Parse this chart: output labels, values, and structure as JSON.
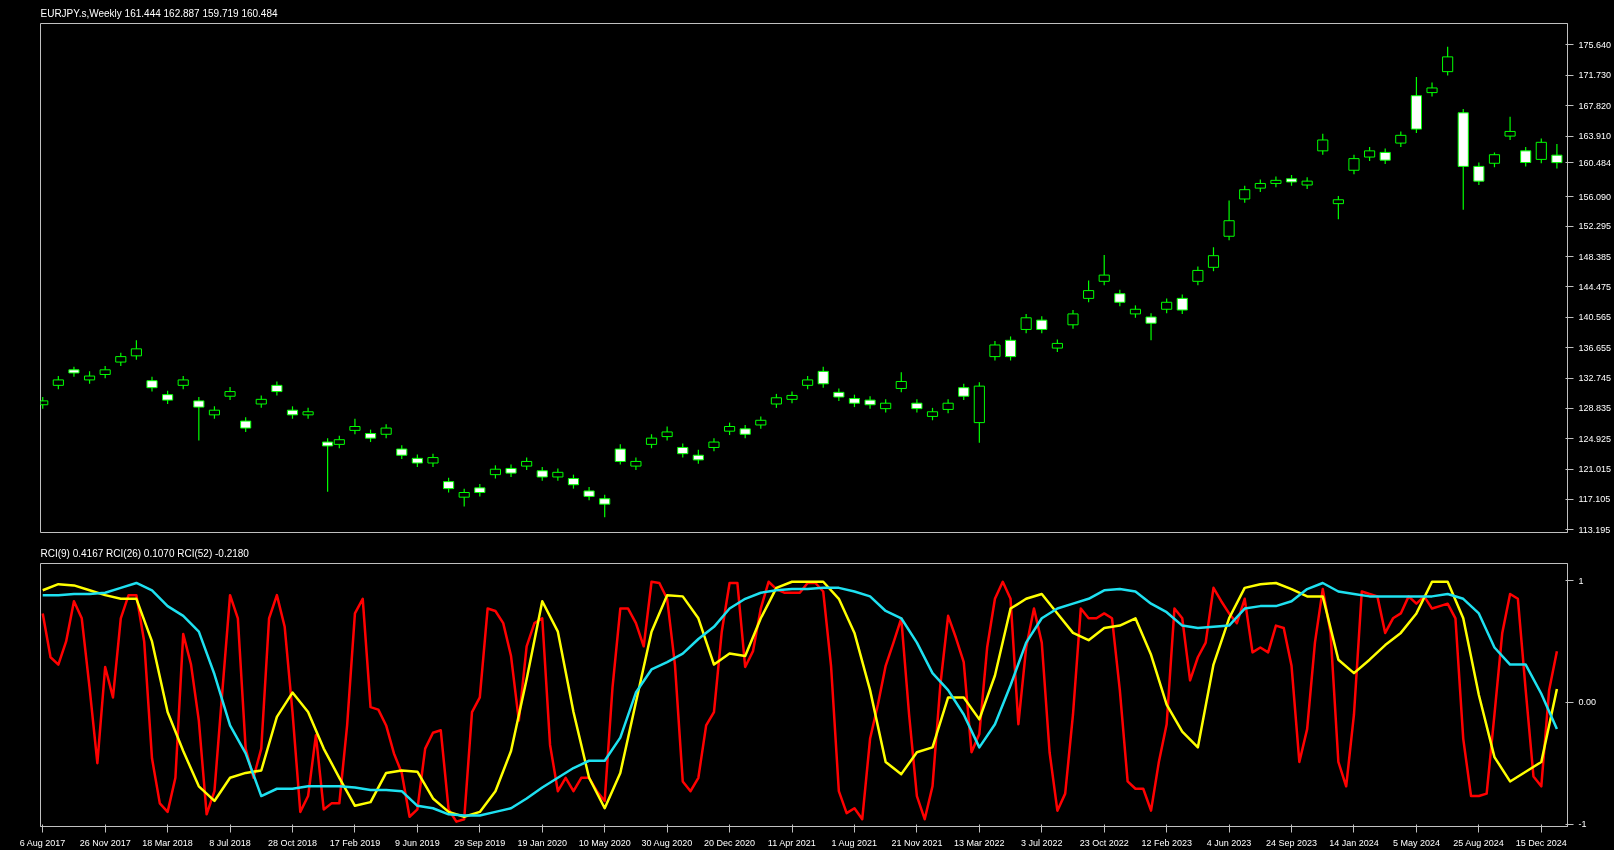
{
  "chart_data": [
    {
      "type": "candlestick",
      "title": "EURJPY.s,Weekly  161.444 162.887 159.719 160.484",
      "color": "#00ff00",
      "tick_labels": "y",
      "xlim": [
        "2017-08-02",
        "2025-01-31"
      ],
      "ylim": [
        112.85,
        178.4
      ],
      "yticks": [
        {
          "value": 175.64,
          "label": "175.640"
        },
        {
          "value": 171.73,
          "label": "171.730"
        },
        {
          "value": 167.82,
          "label": "167.820"
        },
        {
          "value": 163.91,
          "label": "163.910"
        },
        {
          "value": 160.484,
          "label": "160.484"
        },
        {
          "value": 156.09,
          "label": "156.090"
        },
        {
          "value": 152.295,
          "label": "152.295"
        },
        {
          "value": 148.385,
          "label": "148.385"
        },
        {
          "value": 144.475,
          "label": "144.475"
        },
        {
          "value": 140.565,
          "label": "140.565"
        },
        {
          "value": 136.655,
          "label": "136.655"
        },
        {
          "value": 132.745,
          "label": "132.745"
        },
        {
          "value": 128.835,
          "label": "128.835"
        },
        {
          "value": 124.925,
          "label": "124.925"
        },
        {
          "value": 121.015,
          "label": "121.015"
        },
        {
          "value": 117.105,
          "label": "117.105"
        },
        {
          "value": 113.195,
          "label": "113.195"
        }
      ],
      "x": [
        "2017-08-06",
        "2017-09-03",
        "2017-10-01",
        "2017-10-29",
        "2017-11-26",
        "2017-12-24",
        "2018-01-21",
        "2018-02-18",
        "2018-03-18",
        "2018-04-15",
        "2018-05-13",
        "2018-06-10",
        "2018-07-08",
        "2018-08-05",
        "2018-09-02",
        "2018-09-30",
        "2018-10-28",
        "2018-11-25",
        "2018-12-30",
        "2019-01-20",
        "2019-02-17",
        "2019-03-17",
        "2019-04-14",
        "2019-05-12",
        "2019-06-09",
        "2019-07-07",
        "2019-08-04",
        "2019-09-01",
        "2019-09-29",
        "2019-10-27",
        "2019-11-24",
        "2019-12-22",
        "2020-01-19",
        "2020-02-16",
        "2020-03-15",
        "2020-04-12",
        "2020-05-10",
        "2020-06-07",
        "2020-07-05",
        "2020-08-02",
        "2020-08-30",
        "2020-09-27",
        "2020-10-25",
        "2020-11-22",
        "2020-12-20",
        "2021-01-17",
        "2021-02-14",
        "2021-03-14",
        "2021-04-11",
        "2021-05-09",
        "2021-06-06",
        "2021-07-04",
        "2021-08-01",
        "2021-08-29",
        "2021-09-26",
        "2021-10-24",
        "2021-11-21",
        "2021-12-19",
        "2022-01-16",
        "2022-02-13",
        "2022-03-13",
        "2022-04-10",
        "2022-05-08",
        "2022-06-05",
        "2022-07-03",
        "2022-07-31",
        "2022-08-28",
        "2022-09-25",
        "2022-10-23",
        "2022-11-20",
        "2022-12-18",
        "2023-01-15",
        "2023-02-12",
        "2023-03-12",
        "2023-04-09",
        "2023-05-07",
        "2023-06-04",
        "2023-07-02",
        "2023-07-30",
        "2023-08-27",
        "2023-09-24",
        "2023-10-22",
        "2023-11-19",
        "2023-12-17",
        "2024-01-14",
        "2024-02-11",
        "2024-03-10",
        "2024-04-07",
        "2024-05-05",
        "2024-06-02",
        "2024-06-30",
        "2024-07-28",
        "2024-08-25",
        "2024-09-22",
        "2024-10-20",
        "2024-11-17",
        "2024-12-15",
        "2025-01-12"
      ],
      "ohlc": [
        [
          129.3,
          130.3,
          128.8,
          129.8
        ],
        [
          131.8,
          133.0,
          131.3,
          132.5
        ],
        [
          133.8,
          134.2,
          132.9,
          133.4
        ],
        [
          132.5,
          133.6,
          132.0,
          133.0
        ],
        [
          133.2,
          134.3,
          132.7,
          133.8
        ],
        [
          134.8,
          136.0,
          134.3,
          135.5
        ],
        [
          135.6,
          137.6,
          135.1,
          136.5
        ],
        [
          132.4,
          132.9,
          131.0,
          131.5
        ],
        [
          130.6,
          131.1,
          129.4,
          129.9
        ],
        [
          131.8,
          133.0,
          131.3,
          132.5
        ],
        [
          129.8,
          130.3,
          124.7,
          129.0
        ],
        [
          128.0,
          129.1,
          127.5,
          128.6
        ],
        [
          130.4,
          131.6,
          129.9,
          131.0
        ],
        [
          127.2,
          127.7,
          125.8,
          126.3
        ],
        [
          129.4,
          130.5,
          128.9,
          130.0
        ],
        [
          131.8,
          132.3,
          130.5,
          131.0
        ],
        [
          128.6,
          129.1,
          127.5,
          128.0
        ],
        [
          128.0,
          128.9,
          127.5,
          128.4
        ],
        [
          124.5,
          125.0,
          118.1,
          124.0
        ],
        [
          124.2,
          125.3,
          123.7,
          124.8
        ],
        [
          126.0,
          127.5,
          125.5,
          126.5
        ],
        [
          125.6,
          126.1,
          124.5,
          125.0
        ],
        [
          125.5,
          126.8,
          125.0,
          126.3
        ],
        [
          123.6,
          124.1,
          122.3,
          122.8
        ],
        [
          122.4,
          122.9,
          121.3,
          121.8
        ],
        [
          121.8,
          123.0,
          121.3,
          122.5
        ],
        [
          119.4,
          119.9,
          118.0,
          118.5
        ],
        [
          117.4,
          118.5,
          116.2,
          118.0
        ],
        [
          118.6,
          119.1,
          117.5,
          118.0
        ],
        [
          120.3,
          121.5,
          119.8,
          121.0
        ],
        [
          121.1,
          121.6,
          120.0,
          120.5
        ],
        [
          121.4,
          122.5,
          120.9,
          122.0
        ],
        [
          120.8,
          121.3,
          119.5,
          120.0
        ],
        [
          120.0,
          121.1,
          119.5,
          120.6
        ],
        [
          119.8,
          120.3,
          118.5,
          119.0
        ],
        [
          118.2,
          118.7,
          117.0,
          117.5
        ],
        [
          117.2,
          117.7,
          114.8,
          116.5
        ],
        [
          123.6,
          124.2,
          121.6,
          122.0
        ],
        [
          121.4,
          122.5,
          120.9,
          122.0
        ],
        [
          124.2,
          125.5,
          123.7,
          125.0
        ],
        [
          125.2,
          126.5,
          124.7,
          125.8
        ],
        [
          123.8,
          124.3,
          122.5,
          123.0
        ],
        [
          122.8,
          123.5,
          121.7,
          122.2
        ],
        [
          123.8,
          125.0,
          123.3,
          124.5
        ],
        [
          125.9,
          127.0,
          125.4,
          126.5
        ],
        [
          126.2,
          126.7,
          125.0,
          125.5
        ],
        [
          126.7,
          127.8,
          126.2,
          127.3
        ],
        [
          129.4,
          130.7,
          128.9,
          130.2
        ],
        [
          130.0,
          131.0,
          129.5,
          130.5
        ],
        [
          131.8,
          133.0,
          131.3,
          132.5
        ],
        [
          133.6,
          134.2,
          131.5,
          132.0
        ],
        [
          130.9,
          131.4,
          129.8,
          130.3
        ],
        [
          130.1,
          130.6,
          129.0,
          129.5
        ],
        [
          129.9,
          130.4,
          128.8,
          129.3
        ],
        [
          128.8,
          130.0,
          128.3,
          129.5
        ],
        [
          131.4,
          133.5,
          130.9,
          132.3
        ],
        [
          129.5,
          130.0,
          128.3,
          128.8
        ],
        [
          127.8,
          128.9,
          127.3,
          128.4
        ],
        [
          128.7,
          130.0,
          128.2,
          129.5
        ],
        [
          131.5,
          132.0,
          129.9,
          130.4
        ],
        [
          127.0,
          132.2,
          124.4,
          131.7
        ],
        [
          135.5,
          137.5,
          135.0,
          137.0
        ],
        [
          137.6,
          138.1,
          135.0,
          135.5
        ],
        [
          139.0,
          141.0,
          138.5,
          140.5
        ],
        [
          140.2,
          140.7,
          138.5,
          139.0
        ],
        [
          136.6,
          137.7,
          136.1,
          137.2
        ],
        [
          139.6,
          141.5,
          139.1,
          141.0
        ],
        [
          143.0,
          145.3,
          142.5,
          144.0
        ],
        [
          145.2,
          148.6,
          144.7,
          146.0
        ],
        [
          143.6,
          144.1,
          142.0,
          142.5
        ],
        [
          141.0,
          142.1,
          140.5,
          141.6
        ],
        [
          140.6,
          141.1,
          137.6,
          139.8
        ],
        [
          141.6,
          143.0,
          141.1,
          142.5
        ],
        [
          143.0,
          143.5,
          141.0,
          141.5
        ],
        [
          145.2,
          147.1,
          144.7,
          146.6
        ],
        [
          147.0,
          149.6,
          146.5,
          148.5
        ],
        [
          151.0,
          155.6,
          150.5,
          153.0
        ],
        [
          155.8,
          157.5,
          155.3,
          157.0
        ],
        [
          157.2,
          158.3,
          156.7,
          157.8
        ],
        [
          157.8,
          158.7,
          157.3,
          158.2
        ],
        [
          158.4,
          158.9,
          157.5,
          158.0
        ],
        [
          157.6,
          158.6,
          157.1,
          158.1
        ],
        [
          162.0,
          164.2,
          161.5,
          163.4
        ],
        [
          155.2,
          156.2,
          153.2,
          155.7
        ],
        [
          159.5,
          161.5,
          159.0,
          161.0
        ],
        [
          161.2,
          162.5,
          160.7,
          162.0
        ],
        [
          161.8,
          162.3,
          160.3,
          160.8
        ],
        [
          163.0,
          164.5,
          162.5,
          164.0
        ],
        [
          169.1,
          171.5,
          164.3,
          164.8
        ],
        [
          169.5,
          170.8,
          169.0,
          170.1
        ],
        [
          172.2,
          175.4,
          171.7,
          174.1
        ],
        [
          166.9,
          167.4,
          154.4,
          160.0
        ],
        [
          160.0,
          160.5,
          157.6,
          158.1
        ],
        [
          160.4,
          161.8,
          159.9,
          161.5
        ],
        [
          163.9,
          166.4,
          163.4,
          164.5
        ],
        [
          162.0,
          162.5,
          160.0,
          160.5
        ],
        [
          160.9,
          163.6,
          160.4,
          163.1
        ],
        [
          161.444,
          162.887,
          159.719,
          160.484
        ]
      ]
    },
    {
      "type": "line",
      "title": "RCI(9) 0.4167  RCI(26) 0.1070  RCI(52) -0.2180",
      "xlim": [
        "2017-08-02",
        "2025-01-31"
      ],
      "ylim": [
        -1.02,
        1.14
      ],
      "yticks": [
        1,
        {
          "value": 0,
          "label": "0.00"
        },
        -1
      ],
      "xticks": [
        {
          "value": "2017-08-06",
          "label": "6 Aug 2017"
        },
        {
          "value": "2017-11-26",
          "label": "26 Nov 2017"
        },
        {
          "value": "2018-03-18",
          "label": "18 Mar 2018"
        },
        {
          "value": "2018-07-08",
          "label": "8 Jul 2018"
        },
        {
          "value": "2018-10-28",
          "label": "28 Oct 2018"
        },
        {
          "value": "2019-02-17",
          "label": "17 Feb 2019"
        },
        {
          "value": "2019-06-09",
          "label": "9 Jun 2019"
        },
        {
          "value": "2019-09-29",
          "label": "29 Sep 2019"
        },
        {
          "value": "2020-01-19",
          "label": "19 Jan 2020"
        },
        {
          "value": "2020-05-10",
          "label": "10 May 2020"
        },
        {
          "value": "2020-08-30",
          "label": "30 Aug 2020"
        },
        {
          "value": "2020-12-20",
          "label": "20 Dec 2020"
        },
        {
          "value": "2021-04-11",
          "label": "11 Apr 2021"
        },
        {
          "value": "2021-08-01",
          "label": "1 Aug 2021"
        },
        {
          "value": "2021-11-21",
          "label": "21 Nov 2021"
        },
        {
          "value": "2022-03-13",
          "label": "13 Mar 2022"
        },
        {
          "value": "2022-07-03",
          "label": "3 Jul 2022"
        },
        {
          "value": "2022-10-23",
          "label": "23 Oct 2022"
        },
        {
          "value": "2023-02-12",
          "label": "12 Feb 2023"
        },
        {
          "value": "2023-06-04",
          "label": "4 Jun 2023"
        },
        {
          "value": "2023-09-24",
          "label": "24 Sep 2023"
        },
        {
          "value": "2024-01-14",
          "label": "14 Jan 2024"
        },
        {
          "value": "2024-05-05",
          "label": "5 May 2024"
        },
        {
          "value": "2024-08-25",
          "label": "25 Aug 2024"
        },
        {
          "value": "2024-12-15",
          "label": "15 Dec 2024"
        }
      ],
      "x": [
        "2017-08-06",
        "2017-09-03",
        "2017-10-01",
        "2017-10-29",
        "2017-11-26",
        "2017-12-24",
        "2018-01-21",
        "2018-02-18",
        "2018-03-18",
        "2018-04-15",
        "2018-05-13",
        "2018-06-10",
        "2018-07-08",
        "2018-08-05",
        "2018-09-02",
        "2018-09-30",
        "2018-10-28",
        "2018-11-25",
        "2018-12-23",
        "2019-01-20",
        "2019-02-17",
        "2019-03-17",
        "2019-04-14",
        "2019-05-12",
        "2019-06-09",
        "2019-07-07",
        "2019-08-04",
        "2019-09-01",
        "2019-09-29",
        "2019-10-27",
        "2019-11-24",
        "2019-12-22",
        "2020-01-19",
        "2020-02-16",
        "2020-03-15",
        "2020-04-12",
        "2020-05-10",
        "2020-06-07",
        "2020-07-05",
        "2020-08-02",
        "2020-08-30",
        "2020-09-27",
        "2020-10-25",
        "2020-11-22",
        "2020-12-20",
        "2021-01-17",
        "2021-02-14",
        "2021-03-14",
        "2021-04-11",
        "2021-05-09",
        "2021-06-06",
        "2021-07-04",
        "2021-08-01",
        "2021-08-29",
        "2021-09-26",
        "2021-10-24",
        "2021-11-21",
        "2021-12-19",
        "2022-01-16",
        "2022-02-13",
        "2022-03-13",
        "2022-04-10",
        "2022-05-08",
        "2022-06-05",
        "2022-07-03",
        "2022-07-31",
        "2022-08-28",
        "2022-09-25",
        "2022-10-23",
        "2022-11-20",
        "2022-12-18",
        "2023-01-15",
        "2023-02-12",
        "2023-03-12",
        "2023-04-09",
        "2023-05-07",
        "2023-06-04",
        "2023-07-02",
        "2023-07-30",
        "2023-08-27",
        "2023-09-24",
        "2023-10-22",
        "2023-11-19",
        "2023-12-17",
        "2024-01-14",
        "2024-02-11",
        "2024-03-10",
        "2024-04-07",
        "2024-05-05",
        "2024-06-02",
        "2024-06-30",
        "2024-07-28",
        "2024-08-25",
        "2024-09-22",
        "2024-10-20",
        "2024-11-17",
        "2024-12-15",
        "2025-01-12"
      ],
      "series": [
        {
          "color": "#ff0000",
          "x": [
            "2017-08-06",
            "2017-08-20",
            "2017-09-03",
            "2017-09-17",
            "2017-10-01",
            "2017-10-15",
            "2017-10-29",
            "2017-11-12",
            "2017-11-26",
            "2017-12-10",
            "2017-12-24",
            "2018-01-07",
            "2018-01-21",
            "2018-02-04",
            "2018-02-18",
            "2018-03-04",
            "2018-03-18",
            "2018-04-01",
            "2018-04-15",
            "2018-04-29",
            "2018-05-13",
            "2018-05-27",
            "2018-06-10",
            "2018-06-24",
            "2018-07-08",
            "2018-07-22",
            "2018-08-05",
            "2018-08-19",
            "2018-09-02",
            "2018-09-16",
            "2018-09-30",
            "2018-10-14",
            "2018-10-28",
            "2018-11-11",
            "2018-11-25",
            "2018-12-09",
            "2018-12-23",
            "2019-01-06",
            "2019-01-20",
            "2019-02-03",
            "2019-02-17",
            "2019-03-03",
            "2019-03-17",
            "2019-03-31",
            "2019-04-14",
            "2019-04-28",
            "2019-05-12",
            "2019-05-26",
            "2019-06-09",
            "2019-06-23",
            "2019-07-07",
            "2019-07-21",
            "2019-08-04",
            "2019-08-18",
            "2019-09-01",
            "2019-09-15",
            "2019-09-29",
            "2019-10-13",
            "2019-10-27",
            "2019-11-10",
            "2019-11-24",
            "2019-12-08",
            "2019-12-22",
            "2020-01-05",
            "2020-01-19",
            "2020-02-02",
            "2020-02-16",
            "2020-03-01",
            "2020-03-15",
            "2020-03-29",
            "2020-04-12",
            "2020-04-26",
            "2020-05-10",
            "2020-05-24",
            "2020-06-07",
            "2020-06-21",
            "2020-07-05",
            "2020-07-19",
            "2020-08-02",
            "2020-08-16",
            "2020-08-30",
            "2020-09-13",
            "2020-09-27",
            "2020-10-11",
            "2020-10-25",
            "2020-11-08",
            "2020-11-22",
            "2020-12-06",
            "2020-12-20",
            "2021-01-03",
            "2021-01-17",
            "2021-01-31",
            "2021-02-14",
            "2021-02-28",
            "2021-03-14",
            "2021-03-28",
            "2021-04-11",
            "2021-04-25",
            "2021-05-09",
            "2021-05-23",
            "2021-06-06",
            "2021-06-20",
            "2021-07-04",
            "2021-07-18",
            "2021-08-01",
            "2021-08-15",
            "2021-08-29",
            "2021-09-12",
            "2021-09-26",
            "2021-10-10",
            "2021-10-24",
            "2021-11-07",
            "2021-11-21",
            "2021-12-05",
            "2021-12-19",
            "2022-01-02",
            "2022-01-16",
            "2022-01-30",
            "2022-02-13",
            "2022-02-27",
            "2022-03-13",
            "2022-03-27",
            "2022-04-10",
            "2022-04-24",
            "2022-05-08",
            "2022-05-22",
            "2022-06-05",
            "2022-06-19",
            "2022-07-03",
            "2022-07-17",
            "2022-07-31",
            "2022-08-14",
            "2022-08-28",
            "2022-09-11",
            "2022-09-25",
            "2022-10-09",
            "2022-10-23",
            "2022-11-06",
            "2022-11-20",
            "2022-12-04",
            "2022-12-18",
            "2023-01-01",
            "2023-01-15",
            "2023-01-29",
            "2023-02-12",
            "2023-02-26",
            "2023-03-12",
            "2023-03-26",
            "2023-04-09",
            "2023-04-23",
            "2023-05-07",
            "2023-05-21",
            "2023-06-04",
            "2023-06-18",
            "2023-07-02",
            "2023-07-16",
            "2023-07-30",
            "2023-08-13",
            "2023-08-27",
            "2023-09-10",
            "2023-09-24",
            "2023-10-08",
            "2023-10-22",
            "2023-11-05",
            "2023-11-19",
            "2023-12-03",
            "2023-12-17",
            "2023-12-31",
            "2024-01-14",
            "2024-01-28",
            "2024-02-11",
            "2024-02-25",
            "2024-03-10",
            "2024-03-24",
            "2024-04-07",
            "2024-04-21",
            "2024-05-05",
            "2024-05-19",
            "2024-06-02",
            "2024-06-16",
            "2024-06-30",
            "2024-07-14",
            "2024-07-28",
            "2024-08-11",
            "2024-08-25",
            "2024-09-08",
            "2024-09-22",
            "2024-10-06",
            "2024-10-20",
            "2024-11-03",
            "2024-11-17",
            "2024-12-01",
            "2024-12-15",
            "2024-12-29",
            "2025-01-12"
          ],
          "values": [
            0.73,
            0.37,
            0.31,
            0.5,
            0.83,
            0.69,
            0.12,
            -0.5,
            0.29,
            0.04,
            0.69,
            0.88,
            0.88,
            0.5,
            -0.46,
            -0.83,
            -0.9,
            -0.62,
            0.56,
            0.31,
            -0.15,
            -0.92,
            -0.73,
            0.08,
            0.88,
            0.69,
            -0.38,
            -0.62,
            -0.38,
            0.69,
            0.88,
            0.62,
            -0.08,
            -0.9,
            -0.77,
            -0.27,
            -0.88,
            -0.83,
            -0.83,
            -0.19,
            0.73,
            0.85,
            -0.04,
            -0.06,
            -0.19,
            -0.42,
            -0.58,
            -0.94,
            -0.88,
            -0.38,
            -0.25,
            -0.23,
            -0.88,
            -0.98,
            -0.96,
            -0.08,
            0.04,
            0.77,
            0.75,
            0.65,
            0.38,
            -0.15,
            0.46,
            0.65,
            0.69,
            -0.35,
            -0.73,
            -0.62,
            -0.73,
            -0.62,
            -0.62,
            -0.73,
            -0.81,
            0.12,
            0.77,
            0.77,
            0.65,
            0.46,
            0.99,
            0.98,
            0.85,
            0.31,
            -0.65,
            -0.73,
            -0.62,
            -0.19,
            -0.08,
            0.58,
            0.98,
            0.98,
            0.29,
            0.42,
            0.77,
            0.99,
            0.93,
            0.9,
            0.9,
            0.9,
            0.98,
            0.98,
            0.91,
            0.3,
            -0.73,
            -0.91,
            -0.87,
            -0.96,
            -0.3,
            -0.02,
            0.3,
            0.49,
            0.69,
            -0.1,
            -0.77,
            -0.96,
            -0.69,
            0.14,
            0.71,
            0.53,
            0.33,
            -0.41,
            -0.26,
            0.45,
            0.85,
            0.99,
            0.85,
            -0.18,
            0.45,
            0.77,
            0.49,
            -0.41,
            -0.89,
            -0.75,
            -0.1,
            0.77,
            0.69,
            0.69,
            0.73,
            0.69,
            0.1,
            -0.65,
            -0.71,
            -0.71,
            -0.89,
            -0.49,
            -0.18,
            0.77,
            0.69,
            0.18,
            0.37,
            0.49,
            0.94,
            0.83,
            0.73,
            0.65,
            0.85,
            0.41,
            0.45,
            0.41,
            0.63,
            0.61,
            0.3,
            -0.49,
            -0.22,
            0.49,
            0.93,
            0.57,
            -0.49,
            -0.69,
            -0.1,
            0.91,
            0.89,
            0.87,
            0.57,
            0.69,
            0.73,
            0.87,
            0.81,
            0.87,
            0.77,
            0.79,
            0.81,
            0.69,
            -0.3,
            -0.77,
            -0.77,
            -0.75,
            -0.1,
            0.57,
            0.89,
            0.85,
            0.1,
            -0.61,
            -0.69,
            0.1,
            0.42
          ]
        },
        {
          "color": "#ffff00",
          "values": [
            0.92,
            0.97,
            0.96,
            0.92,
            0.88,
            0.85,
            0.85,
            0.5,
            -0.08,
            -0.4,
            -0.69,
            -0.81,
            -0.62,
            -0.58,
            -0.56,
            -0.12,
            0.08,
            -0.08,
            -0.38,
            -0.62,
            -0.85,
            -0.82,
            -0.58,
            -0.56,
            -0.57,
            -0.79,
            -0.9,
            -0.94,
            -0.9,
            -0.73,
            -0.4,
            0.19,
            0.83,
            0.58,
            -0.08,
            -0.62,
            -0.87,
            -0.58,
            0.0,
            0.58,
            0.88,
            0.87,
            0.69,
            0.31,
            0.4,
            0.38,
            0.69,
            0.94,
            0.99,
            0.99,
            0.99,
            0.85,
            0.57,
            0.1,
            -0.49,
            -0.59,
            -0.41,
            -0.37,
            0.04,
            0.04,
            -0.14,
            0.22,
            0.77,
            0.85,
            0.89,
            0.73,
            0.57,
            0.51,
            0.61,
            0.63,
            0.69,
            0.39,
            -0.02,
            -0.24,
            -0.37,
            0.31,
            0.69,
            0.94,
            0.97,
            0.98,
            0.93,
            0.87,
            0.87,
            0.35,
            0.24,
            0.35,
            0.47,
            0.57,
            0.73,
            0.99,
            0.99,
            0.69,
            0.06,
            -0.45,
            -0.65,
            -0.57,
            -0.49,
            0.11
          ]
        },
        {
          "color": "#1ee0f0",
          "values": [
            0.88,
            0.88,
            0.89,
            0.89,
            0.9,
            0.94,
            0.98,
            0.92,
            0.79,
            0.71,
            0.58,
            0.23,
            -0.19,
            -0.42,
            -0.77,
            -0.71,
            -0.71,
            -0.69,
            -0.69,
            -0.69,
            -0.7,
            -0.72,
            -0.72,
            -0.73,
            -0.85,
            -0.87,
            -0.92,
            -0.93,
            -0.93,
            -0.9,
            -0.87,
            -0.79,
            -0.7,
            -0.62,
            -0.54,
            -0.48,
            -0.48,
            -0.29,
            0.08,
            0.27,
            0.33,
            0.4,
            0.52,
            0.62,
            0.77,
            0.85,
            0.9,
            0.92,
            0.93,
            0.93,
            0.94,
            0.94,
            0.91,
            0.87,
            0.75,
            0.69,
            0.49,
            0.24,
            0.1,
            -0.1,
            -0.37,
            -0.18,
            0.14,
            0.49,
            0.69,
            0.77,
            0.81,
            0.85,
            0.92,
            0.93,
            0.91,
            0.81,
            0.74,
            0.63,
            0.61,
            0.62,
            0.63,
            0.77,
            0.79,
            0.79,
            0.83,
            0.93,
            0.98,
            0.91,
            0.89,
            0.87,
            0.87,
            0.87,
            0.87,
            0.87,
            0.89,
            0.85,
            0.73,
            0.45,
            0.31,
            0.31,
            0.07,
            -0.22
          ]
        }
      ]
    }
  ]
}
